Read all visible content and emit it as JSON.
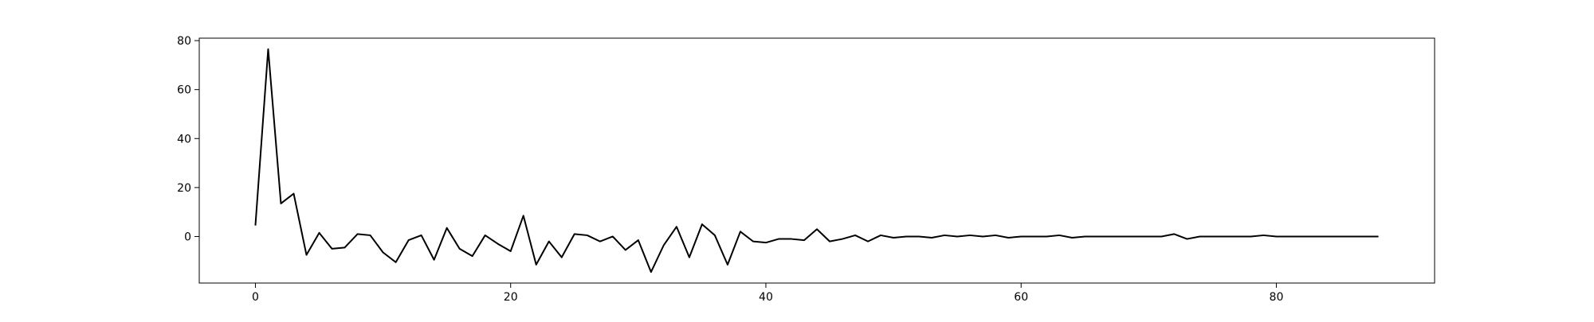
{
  "chart_data": {
    "type": "line",
    "title": "",
    "xlabel": "",
    "ylabel": "",
    "xlim": [
      -4.4,
      92.4
    ],
    "ylim": [
      -19.0,
      81.0
    ],
    "xticks": [
      0,
      20,
      40,
      60,
      80
    ],
    "yticks": [
      0,
      20,
      40,
      60,
      80
    ],
    "grid": false,
    "line_color": "#000000",
    "series": [
      {
        "x": [
          0,
          1,
          2,
          3,
          4,
          5,
          6,
          7,
          8,
          9,
          10,
          11,
          12,
          13,
          14,
          15,
          16,
          17,
          18,
          19,
          20,
          21,
          22,
          23,
          24,
          25,
          26,
          27,
          28,
          29,
          30,
          31,
          32,
          33,
          34,
          35,
          36,
          37,
          38,
          39,
          40,
          41,
          42,
          43,
          44,
          45,
          46,
          47,
          48,
          49,
          50,
          51,
          52,
          53,
          54,
          55,
          56,
          57,
          58,
          59,
          60,
          61,
          62,
          63,
          64,
          65,
          66,
          67,
          68,
          69,
          70,
          71,
          72,
          73,
          74,
          75,
          76,
          77,
          78,
          79,
          80,
          81,
          82,
          83,
          84,
          85,
          86,
          87,
          88
        ],
        "values": [
          4.5,
          76.5,
          13.5,
          17.5,
          -7.5,
          1.5,
          -5,
          -4.5,
          1,
          0.5,
          -6.5,
          -10.5,
          -1.5,
          0.5,
          -9.5,
          3.5,
          -5,
          -8,
          0.5,
          -3,
          -6,
          8.5,
          -11.5,
          -2,
          -8.5,
          1,
          0.5,
          -2,
          0,
          -5.5,
          -1.5,
          -14.5,
          -3.5,
          4,
          -8.5,
          5,
          0.5,
          -11.5,
          2,
          -2,
          -2.5,
          -1,
          -1,
          -1.5,
          3,
          -2,
          -1,
          0.5,
          -2,
          0.5,
          -0.5,
          0,
          0,
          -0.5,
          0.5,
          0,
          0.5,
          0,
          0.5,
          -0.5,
          0,
          0,
          0,
          0.5,
          -0.5,
          0,
          0,
          0,
          0,
          0,
          0,
          0,
          1,
          -1,
          0,
          0,
          0,
          0,
          0,
          0.5,
          0,
          0,
          0,
          0,
          0,
          0,
          0,
          0,
          0
        ]
      }
    ]
  }
}
